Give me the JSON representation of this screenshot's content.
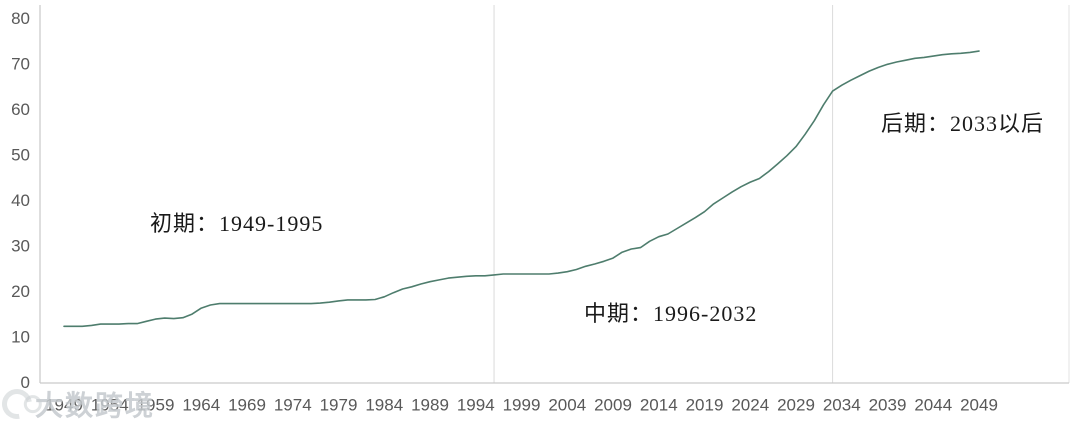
{
  "watermark": {
    "text": "大数跨境",
    "icon": "logo-badge-icon"
  },
  "chart_data": {
    "type": "line",
    "title": "",
    "xlabel": "",
    "ylabel": "",
    "ylim": [
      0,
      80
    ],
    "xlim": [
      1949,
      2049
    ],
    "grid": "vertical-boundary-lines-only",
    "legend_position": "none",
    "yticks": [
      0,
      10,
      20,
      30,
      40,
      50,
      60,
      70,
      80
    ],
    "xticks": [
      1949,
      1954,
      1959,
      1964,
      1969,
      1974,
      1979,
      1984,
      1989,
      1994,
      1999,
      2004,
      2009,
      2014,
      2019,
      2024,
      2029,
      2034,
      2039,
      2044,
      2049
    ],
    "gridlines_x": [
      1996,
      2033
    ],
    "x": [
      1949,
      1950,
      1951,
      1952,
      1953,
      1954,
      1955,
      1956,
      1957,
      1958,
      1959,
      1960,
      1961,
      1962,
      1963,
      1964,
      1965,
      1966,
      1967,
      1968,
      1969,
      1970,
      1971,
      1972,
      1973,
      1974,
      1975,
      1976,
      1977,
      1978,
      1979,
      1980,
      1981,
      1982,
      1983,
      1984,
      1985,
      1986,
      1987,
      1988,
      1989,
      1990,
      1991,
      1992,
      1993,
      1994,
      1995,
      1996,
      1997,
      1998,
      1999,
      2000,
      2001,
      2002,
      2003,
      2004,
      2005,
      2006,
      2007,
      2008,
      2009,
      2010,
      2011,
      2012,
      2013,
      2014,
      2015,
      2016,
      2017,
      2018,
      2019,
      2020,
      2021,
      2022,
      2023,
      2024,
      2025,
      2026,
      2027,
      2028,
      2029,
      2030,
      2031,
      2032,
      2033,
      2034,
      2035,
      2036,
      2037,
      2038,
      2039,
      2040,
      2041,
      2042,
      2043,
      2044,
      2045,
      2046,
      2047,
      2048,
      2049
    ],
    "values": [
      12.3,
      12.3,
      12.3,
      12.5,
      12.8,
      12.8,
      12.8,
      12.9,
      12.9,
      13.4,
      13.9,
      14.1,
      14.0,
      14.2,
      15.0,
      16.3,
      17.0,
      17.3,
      17.3,
      17.3,
      17.3,
      17.3,
      17.3,
      17.3,
      17.3,
      17.3,
      17.3,
      17.3,
      17.4,
      17.6,
      17.9,
      18.1,
      18.1,
      18.1,
      18.2,
      18.8,
      19.7,
      20.5,
      21.0,
      21.6,
      22.1,
      22.5,
      22.9,
      23.1,
      23.3,
      23.4,
      23.4,
      23.6,
      23.8,
      23.8,
      23.8,
      23.8,
      23.8,
      23.8,
      24.0,
      24.3,
      24.8,
      25.5,
      26.0,
      26.6,
      27.3,
      28.6,
      29.3,
      29.6,
      31.0,
      32.0,
      32.6,
      33.8,
      35.0,
      36.2,
      37.5,
      39.2,
      40.5,
      41.8,
      43.0,
      44.0,
      44.8,
      46.3,
      48.0,
      49.8,
      51.8,
      54.5,
      57.5,
      61.0,
      64.0,
      65.3,
      66.4,
      67.4,
      68.4,
      69.2,
      69.9,
      70.4,
      70.8,
      71.2,
      71.4,
      71.7,
      72.0,
      72.2,
      72.3,
      72.5,
      72.8
    ],
    "annotations": [
      {
        "text": "初期：1949-1995"
      },
      {
        "text": "中期：1996-2032"
      },
      {
        "text": "后期：2033以后"
      }
    ],
    "colors": {
      "line": "#4E7D6D",
      "gridline": "#DADADA",
      "axis": "#C9C9C9",
      "right_border": "#E3E3E3",
      "tick_label": "#595959",
      "annotation": "#1A1A1A",
      "watermark": "#C5CACE"
    }
  }
}
